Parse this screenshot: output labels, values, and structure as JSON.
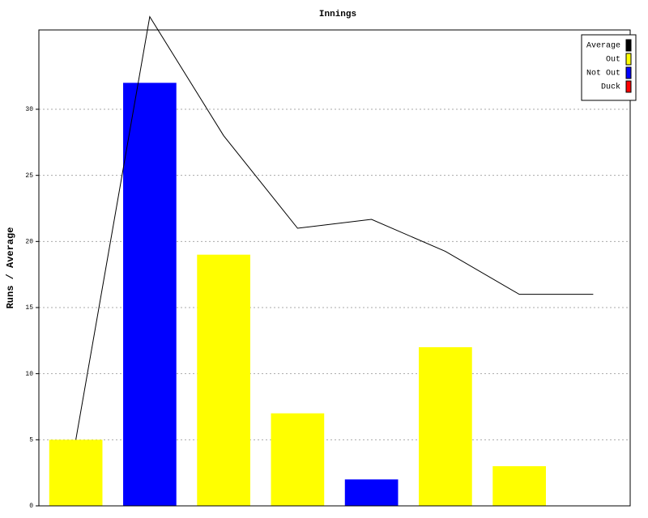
{
  "chart_data": {
    "type": "bar",
    "title": "Innings",
    "y_label": "Runs / Average",
    "categories": [
      null,
      null,
      null,
      null,
      null,
      null,
      null,
      null
    ],
    "series": [
      {
        "name": "Average",
        "type": "line",
        "color": "#000000",
        "values": [
          5,
          37,
          28,
          21,
          21.67,
          19.25,
          16,
          16
        ]
      },
      {
        "name": "Out",
        "color": "#ffff00",
        "values": [
          5,
          null,
          19,
          7,
          null,
          12,
          3,
          null
        ]
      },
      {
        "name": "Not Out",
        "color": "#0000ff",
        "values": [
          null,
          32,
          null,
          null,
          2,
          null,
          null,
          null
        ]
      },
      {
        "name": "Duck",
        "color": "#ff0000",
        "values": [
          null,
          null,
          null,
          null,
          null,
          null,
          null,
          null
        ]
      }
    ],
    "ylim": [
      0,
      36
    ],
    "yticks": [
      0,
      5,
      10,
      15,
      20,
      25,
      30
    ],
    "grid": true,
    "legend": "upper right"
  }
}
